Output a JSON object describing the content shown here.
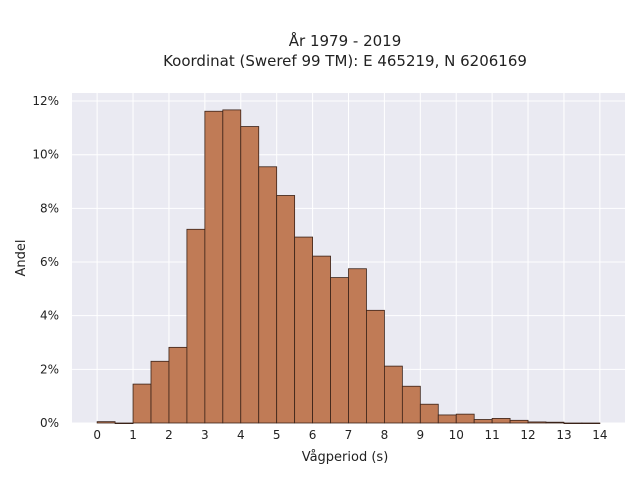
{
  "chart_data": {
    "type": "bar",
    "title_lines": [
      "År 1979 - 2019",
      "Koordinat (Sweref 99 TM): E 465219, N 6206169"
    ],
    "xlabel": "Vågperiod (s)",
    "ylabel": "Andel",
    "bin_width": 0.5,
    "bins_start": [
      0,
      0.5,
      1,
      1.5,
      2,
      2.5,
      3,
      3.5,
      4,
      4.5,
      5,
      5.5,
      6,
      6.5,
      7,
      7.5,
      8,
      8.5,
      9,
      9.5,
      10,
      10.5,
      11,
      11.5,
      12,
      12.5,
      13,
      13.5
    ],
    "values": [
      0.05,
      0.0,
      1.45,
      2.3,
      2.82,
      7.22,
      11.62,
      11.67,
      11.05,
      9.55,
      8.48,
      6.93,
      6.22,
      5.42,
      5.75,
      4.2,
      2.12,
      1.37,
      0.7,
      0.3,
      0.33,
      0.13,
      0.17,
      0.1,
      0.04,
      0.03,
      0.0,
      0.0
    ],
    "xlim": [
      -0.7,
      14.7
    ],
    "ylim": [
      0,
      12.3
    ],
    "xticks": [
      0,
      1,
      2,
      3,
      4,
      5,
      6,
      7,
      8,
      9,
      10,
      11,
      12,
      13,
      14
    ],
    "yticks": [
      0,
      2,
      4,
      6,
      8,
      10,
      12
    ],
    "ytick_labels": [
      "0%",
      "2%",
      "4%",
      "6%",
      "8%",
      "10%",
      "12%"
    ],
    "bar_color": "#c07b56",
    "bar_edge_color": "#3a2218",
    "plot_background": "#eaeaf2",
    "grid": true,
    "grid_color": "#ffffff"
  }
}
